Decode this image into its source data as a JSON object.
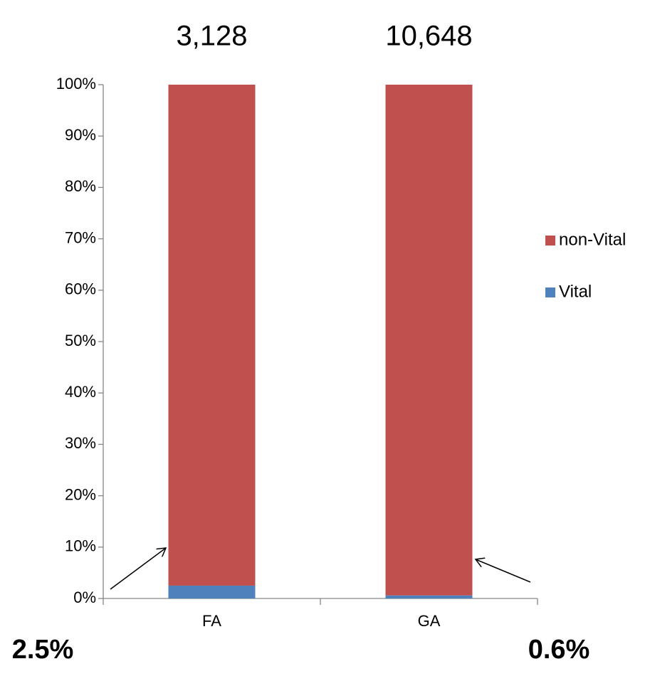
{
  "chart_data": {
    "type": "bar",
    "stacked": true,
    "categories": [
      "FA",
      "GA"
    ],
    "series": [
      {
        "name": "Vital",
        "color": "#4f81bd",
        "values": [
          2.5,
          0.6
        ],
        "value_labels": [
          "2.5%",
          "0.6%"
        ]
      },
      {
        "name": "non-Vital",
        "color": "#c0504d",
        "values": [
          97.5,
          99.4
        ]
      }
    ],
    "annotations": [
      "3,128",
      "10,648"
    ],
    "ylim": [
      0,
      100
    ],
    "yticks": [
      {
        "value": 0,
        "label": "0%"
      },
      {
        "value": 10,
        "label": "10%"
      },
      {
        "value": 20,
        "label": "20%"
      },
      {
        "value": 30,
        "label": "30%"
      },
      {
        "value": 40,
        "label": "40%"
      },
      {
        "value": 50,
        "label": "50%"
      },
      {
        "value": 60,
        "label": "60%"
      },
      {
        "value": 70,
        "label": "70%"
      },
      {
        "value": 80,
        "label": "80%"
      },
      {
        "value": 90,
        "label": "90%"
      },
      {
        "value": 100,
        "label": "100%"
      }
    ],
    "legend": "right",
    "grid": false
  }
}
